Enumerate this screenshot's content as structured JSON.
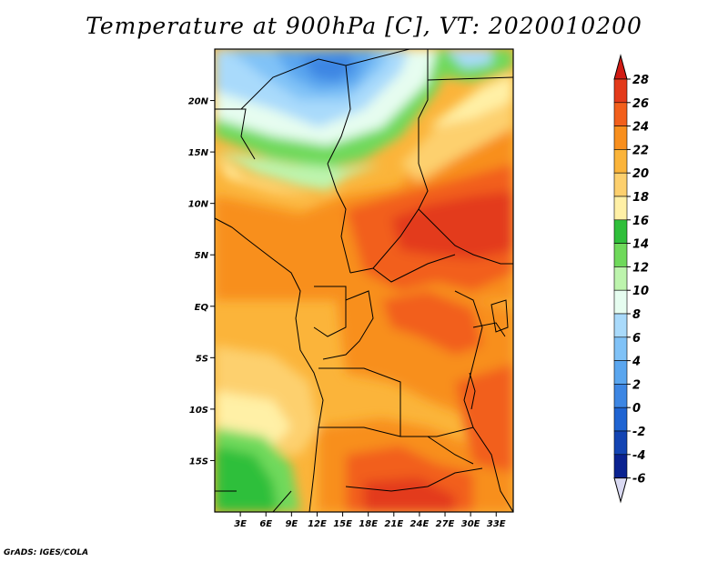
{
  "title": "Temperature at 900hPa [C], VT: 2020010200",
  "credit": "GrADS: IGES/COLA",
  "map": {
    "lon_ticks": [
      "3E",
      "6E",
      "9E",
      "12E",
      "15E",
      "18E",
      "21E",
      "24E",
      "27E",
      "30E",
      "33E"
    ],
    "lat_ticks": [
      "20N",
      "15N",
      "10N",
      "5N",
      "EQ",
      "5S",
      "10S",
      "15S"
    ],
    "lon_range": [
      0,
      35
    ],
    "lat_range": [
      -20,
      25
    ]
  },
  "colorbar": {
    "levels": [
      "28",
      "26",
      "24",
      "22",
      "20",
      "18",
      "16",
      "14",
      "12",
      "10",
      "8",
      "6",
      "4",
      "2",
      "0",
      "-2",
      "-4",
      "-6"
    ],
    "colors": {
      "c26_28": "#e33a1a",
      "c24_26": "#f25f1b",
      "c22_24": "#f88f1d",
      "c20_22": "#fbb43a",
      "c18_20": "#fdd06e",
      "c16_18": "#fff0a6",
      "c14_16": "#2fbf3a",
      "c12_14": "#6fd95b",
      "c10_12": "#bdf4ad",
      "c8_10": "#e6fdf0",
      "c6_8": "#a9dafb",
      "c4_6": "#80c2f7",
      "c2_4": "#5aa6ef",
      "c0_2": "#3d86e3",
      "cm2_0": "#1f64d2",
      "cm4_m2": "#1344b3",
      "cm6_m4": "#0a2290",
      "above": "#d11b14",
      "below": "#d9d9f2"
    }
  }
}
